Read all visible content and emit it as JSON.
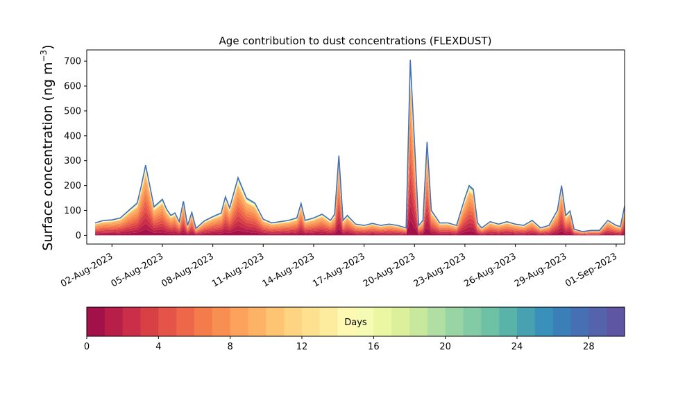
{
  "chart_data": [
    {
      "type": "area",
      "stacked": true,
      "title": "Age contribution to dust concentrations (FLEXDUST)",
      "ylabel_base": "Surface concentration (ng m",
      "ylabel_exp": "−3",
      "ylabel_close": ")",
      "xlabel": "",
      "ylim": [
        -35,
        745
      ],
      "yticks": [
        0,
        100,
        200,
        300,
        400,
        500,
        600,
        700
      ],
      "x_range": [
        "2023-07-31T12:00",
        "2023-09-01T12:00"
      ],
      "xticks": [
        "2023-08-02",
        "2023-08-05",
        "2023-08-08",
        "2023-08-11",
        "2023-08-14",
        "2023-08-17",
        "2023-08-20",
        "2023-08-23",
        "2023-08-26",
        "2023-08-29",
        "2023-09-01"
      ],
      "xtick_labels": [
        "02-Aug-2023",
        "05-Aug-2023",
        "08-Aug-2023",
        "11-Aug-2023",
        "14-Aug-2023",
        "17-Aug-2023",
        "20-Aug-2023",
        "23-Aug-2023",
        "26-Aug-2023",
        "29-Aug-2023",
        "01-Sep-2023"
      ],
      "total_concentration": [
        [
          "2023-08-01T00:00",
          50
        ],
        [
          "2023-08-01T12:00",
          60
        ],
        [
          "2023-08-02T00:00",
          62
        ],
        [
          "2023-08-02T12:00",
          70
        ],
        [
          "2023-08-03T00:00",
          100
        ],
        [
          "2023-08-03T12:00",
          130
        ],
        [
          "2023-08-03T18:00",
          200
        ],
        [
          "2023-08-04T00:00",
          282
        ],
        [
          "2023-08-04T06:00",
          200
        ],
        [
          "2023-08-04T12:00",
          115
        ],
        [
          "2023-08-05T00:00",
          145
        ],
        [
          "2023-08-05T06:00",
          105
        ],
        [
          "2023-08-05T12:00",
          80
        ],
        [
          "2023-08-05T18:00",
          90
        ],
        [
          "2023-08-06T00:00",
          55
        ],
        [
          "2023-08-06T06:00",
          137
        ],
        [
          "2023-08-06T12:00",
          40
        ],
        [
          "2023-08-06T18:00",
          92
        ],
        [
          "2023-08-07T00:00",
          28
        ],
        [
          "2023-08-07T12:00",
          58
        ],
        [
          "2023-08-08T00:00",
          75
        ],
        [
          "2023-08-08T12:00",
          90
        ],
        [
          "2023-08-08T18:00",
          155
        ],
        [
          "2023-08-09T00:00",
          110
        ],
        [
          "2023-08-09T12:00",
          232
        ],
        [
          "2023-08-10T00:00",
          150
        ],
        [
          "2023-08-10T12:00",
          130
        ],
        [
          "2023-08-11T00:00",
          65
        ],
        [
          "2023-08-11T12:00",
          50
        ],
        [
          "2023-08-12T00:00",
          55
        ],
        [
          "2023-08-12T12:00",
          60
        ],
        [
          "2023-08-13T00:00",
          70
        ],
        [
          "2023-08-13T06:00",
          128
        ],
        [
          "2023-08-13T12:00",
          60
        ],
        [
          "2023-08-14T00:00",
          70
        ],
        [
          "2023-08-14T12:00",
          85
        ],
        [
          "2023-08-15T00:00",
          60
        ],
        [
          "2023-08-15T06:00",
          85
        ],
        [
          "2023-08-15T12:00",
          320
        ],
        [
          "2023-08-15T18:00",
          60
        ],
        [
          "2023-08-16T00:00",
          80
        ],
        [
          "2023-08-16T12:00",
          45
        ],
        [
          "2023-08-17T00:00",
          40
        ],
        [
          "2023-08-17T12:00",
          48
        ],
        [
          "2023-08-18T00:00",
          40
        ],
        [
          "2023-08-18T12:00",
          45
        ],
        [
          "2023-08-19T00:00",
          40
        ],
        [
          "2023-08-19T12:00",
          30
        ],
        [
          "2023-08-19T18:00",
          705
        ],
        [
          "2023-08-20T06:00",
          40
        ],
        [
          "2023-08-20T12:00",
          60
        ],
        [
          "2023-08-20T18:00",
          375
        ],
        [
          "2023-08-21T00:00",
          100
        ],
        [
          "2023-08-21T12:00",
          50
        ],
        [
          "2023-08-22T00:00",
          50
        ],
        [
          "2023-08-22T12:00",
          40
        ],
        [
          "2023-08-23T00:00",
          150
        ],
        [
          "2023-08-23T06:00",
          200
        ],
        [
          "2023-08-23T12:00",
          185
        ],
        [
          "2023-08-23T18:00",
          50
        ],
        [
          "2023-08-24T00:00",
          30
        ],
        [
          "2023-08-24T12:00",
          55
        ],
        [
          "2023-08-25T00:00",
          45
        ],
        [
          "2023-08-25T12:00",
          55
        ],
        [
          "2023-08-26T00:00",
          45
        ],
        [
          "2023-08-26T12:00",
          40
        ],
        [
          "2023-08-27T00:00",
          60
        ],
        [
          "2023-08-27T12:00",
          30
        ],
        [
          "2023-08-28T00:00",
          40
        ],
        [
          "2023-08-28T12:00",
          100
        ],
        [
          "2023-08-28T18:00",
          200
        ],
        [
          "2023-08-29T00:00",
          80
        ],
        [
          "2023-08-29T06:00",
          98
        ],
        [
          "2023-08-29T12:00",
          25
        ],
        [
          "2023-08-30T00:00",
          15
        ],
        [
          "2023-08-30T12:00",
          20
        ],
        [
          "2023-08-31T00:00",
          20
        ],
        [
          "2023-08-31T12:00",
          60
        ],
        [
          "2023-09-01T00:00",
          40
        ],
        [
          "2023-09-01T06:00",
          35
        ],
        [
          "2023-09-01T12:00",
          118
        ]
      ],
      "colorbar": {
        "label": "Days",
        "range": [
          0,
          30
        ],
        "ticks": [
          0,
          4,
          8,
          12,
          16,
          20,
          24,
          28
        ],
        "colors": [
          "#a3114a",
          "#b81f48",
          "#ca2e48",
          "#d94046",
          "#e55449",
          "#ee6748",
          "#f47c4a",
          "#f88f52",
          "#fca25c",
          "#fdb366",
          "#fdc473",
          "#fed381",
          "#fee18f",
          "#feec9e",
          "#fef8b3",
          "#f6fbb3",
          "#ebf7a3",
          "#dcf09c",
          "#c8e89d",
          "#b1dfa3",
          "#99d5a4",
          "#83cba4",
          "#6dc1a5",
          "#59b3a8",
          "#48a1b1",
          "#3990b9",
          "#3a7fb8",
          "#4670b3",
          "#5463ab",
          "#5e56a2"
        ]
      }
    }
  ]
}
